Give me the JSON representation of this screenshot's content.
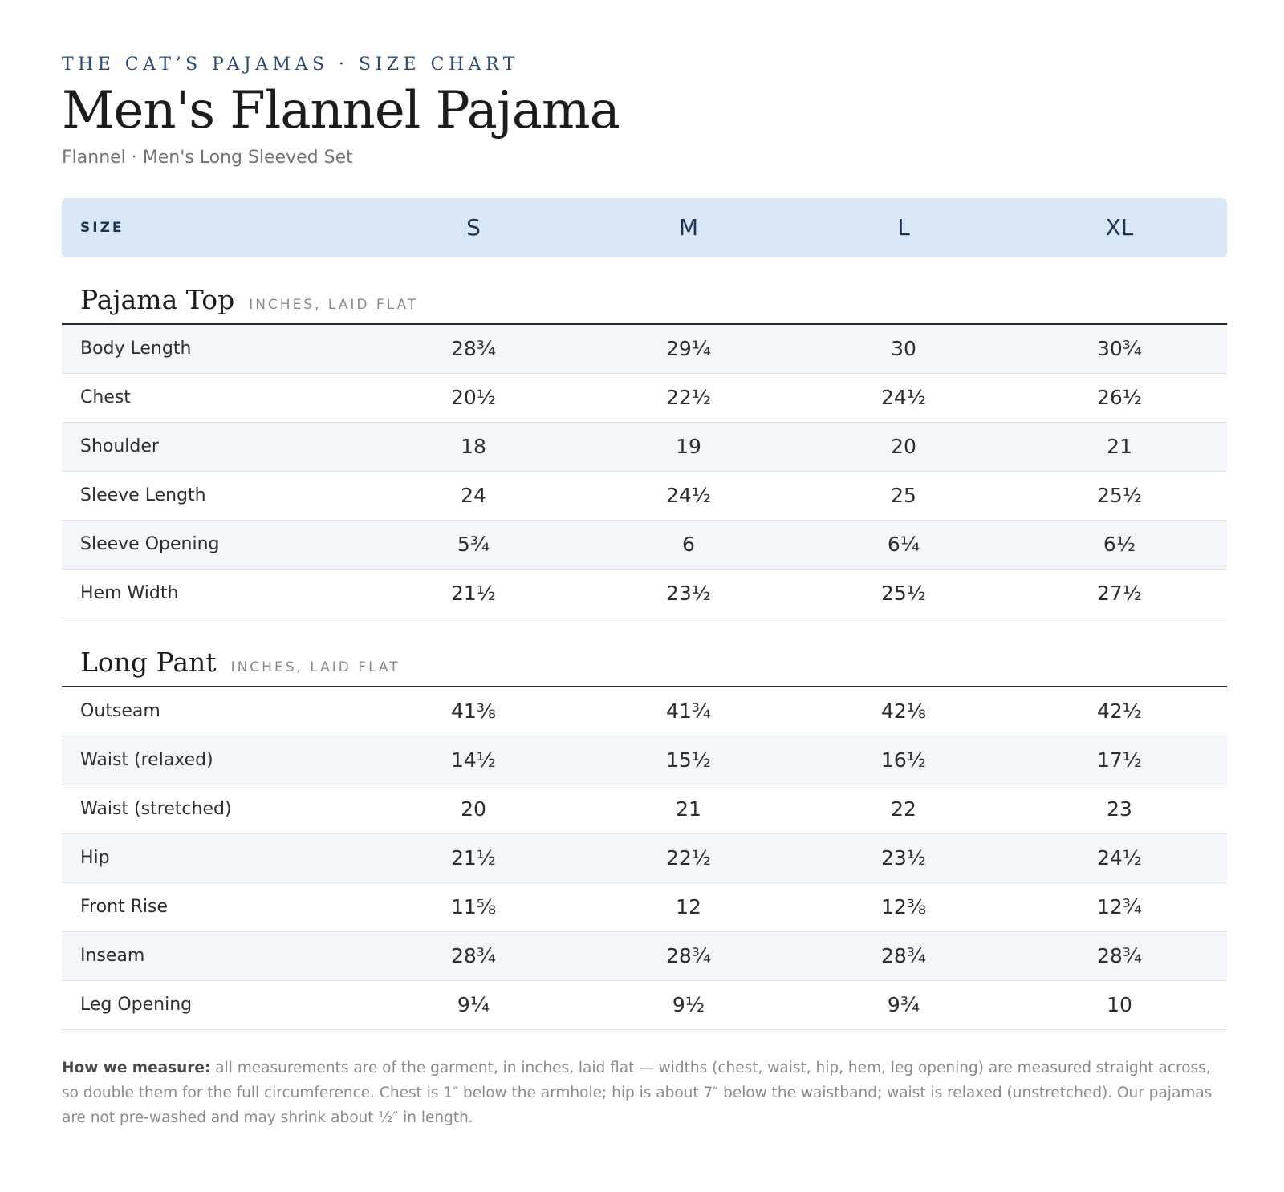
{
  "brand_line": "THE CAT’S PAJAMAS · SIZE CHART",
  "title": "Men's Flannel Pajama",
  "subtitle": "Flannel · Men's Long Sleeved Set",
  "header": {
    "size_label": "SIZE",
    "sizes": [
      "S",
      "M",
      "L",
      "XL"
    ]
  },
  "sections": [
    {
      "title": "Pajama Top",
      "unit": "INCHES, LAID FLAT",
      "rows": [
        {
          "label": "Body Length",
          "values": [
            "28¾",
            "29¼",
            "30",
            "30¾"
          ]
        },
        {
          "label": "Chest",
          "values": [
            "20½",
            "22½",
            "24½",
            "26½"
          ]
        },
        {
          "label": "Shoulder",
          "values": [
            "18",
            "19",
            "20",
            "21"
          ]
        },
        {
          "label": "Sleeve Length",
          "values": [
            "24",
            "24½",
            "25",
            "25½"
          ]
        },
        {
          "label": "Sleeve Opening",
          "values": [
            "5¾",
            "6",
            "6¼",
            "6½"
          ]
        },
        {
          "label": "Hem Width",
          "values": [
            "21½",
            "23½",
            "25½",
            "27½"
          ]
        }
      ]
    },
    {
      "title": "Long Pant",
      "unit": "INCHES, LAID FLAT",
      "rows": [
        {
          "label": "Outseam",
          "values": [
            "41⅜",
            "41¾",
            "42⅛",
            "42½"
          ]
        },
        {
          "label": "Waist (relaxed)",
          "values": [
            "14½",
            "15½",
            "16½",
            "17½"
          ]
        },
        {
          "label": "Waist (stretched)",
          "values": [
            "20",
            "21",
            "22",
            "23"
          ]
        },
        {
          "label": "Hip",
          "values": [
            "21½",
            "22½",
            "23½",
            "24½"
          ]
        },
        {
          "label": "Front Rise",
          "values": [
            "11⅝",
            "12",
            "12⅜",
            "12¾"
          ]
        },
        {
          "label": "Inseam",
          "values": [
            "28¾",
            "28¾",
            "28¾",
            "28¾"
          ]
        },
        {
          "label": "Leg Opening",
          "values": [
            "9¼",
            "9½",
            "9¾",
            "10"
          ]
        }
      ]
    }
  ],
  "note": {
    "label": "How we measure:",
    "text": " all measurements are of the garment, in inches, laid flat — widths (chest, waist, hip, hem, leg opening) are measured straight across, so double them for the full circumference. Chest is 1″ below the armhole; hip is about 7″ below the waistband; waist is relaxed (unstretched). Our pajamas are not pre-washed and may shrink about ½″ in length."
  }
}
